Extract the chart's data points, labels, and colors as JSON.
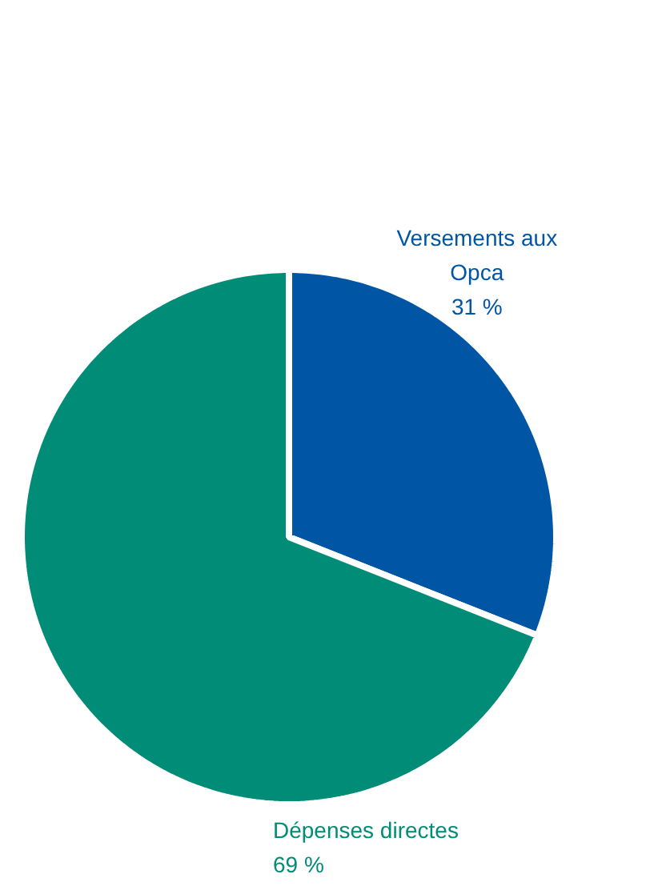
{
  "chart_data": {
    "type": "pie",
    "categories": [
      "Versements aux\nOpca",
      "Dépenses directes"
    ],
    "values": [
      31,
      69
    ],
    "colors": [
      "#0055a4",
      "#008c76"
    ],
    "value_labels": [
      "31 %",
      "69 %"
    ]
  }
}
